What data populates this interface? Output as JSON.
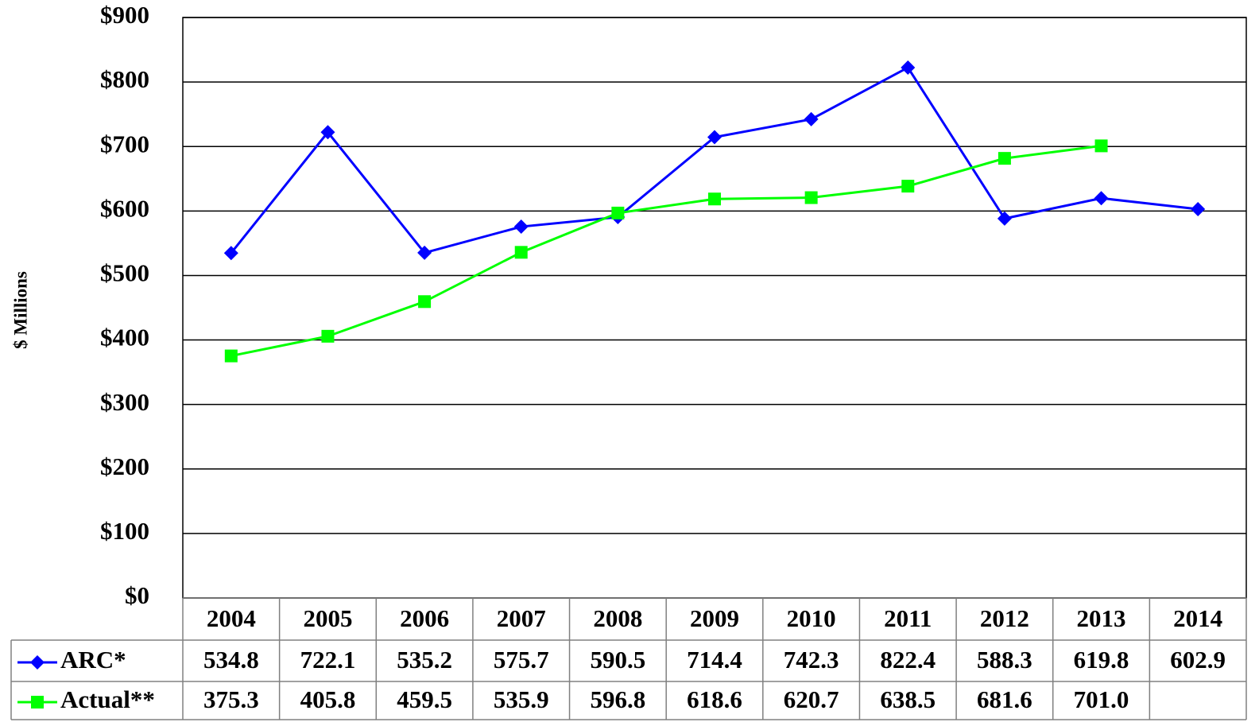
{
  "chart_data": {
    "type": "line",
    "y_label": "$ Millions",
    "categories": [
      "2004",
      "2005",
      "2006",
      "2007",
      "2008",
      "2009",
      "2010",
      "2011",
      "2012",
      "2013",
      "2014"
    ],
    "series": [
      {
        "name": "ARC*",
        "color": "#0000ff",
        "marker": "diamond",
        "values": [
          534.8,
          722.1,
          535.2,
          575.7,
          590.5,
          714.4,
          742.3,
          822.4,
          588.3,
          619.8,
          602.9
        ]
      },
      {
        "name": "Actual**",
        "color": "#00ff00",
        "marker": "square",
        "values": [
          375.3,
          405.8,
          459.5,
          535.9,
          596.8,
          618.6,
          620.7,
          638.5,
          681.6,
          701.0,
          null
        ],
        "value_labels": [
          "375.3",
          "405.8",
          "459.5",
          "535.9",
          "596.8",
          "618.6",
          "620.7",
          "638.5",
          "681.6",
          "701.0",
          null
        ]
      }
    ],
    "ylim": [
      0,
      900
    ],
    "yticks": [
      {
        "value": 0,
        "label": "$0"
      },
      {
        "value": 100,
        "label": "$100"
      },
      {
        "value": 200,
        "label": "$200"
      },
      {
        "value": 300,
        "label": "$300"
      },
      {
        "value": 400,
        "label": "$400"
      },
      {
        "value": 500,
        "label": "$500"
      },
      {
        "value": 600,
        "label": "$600"
      },
      {
        "value": 700,
        "label": "$700"
      },
      {
        "value": 800,
        "label": "$800"
      },
      {
        "value": 900,
        "label": "$900"
      }
    ],
    "grid": true
  }
}
